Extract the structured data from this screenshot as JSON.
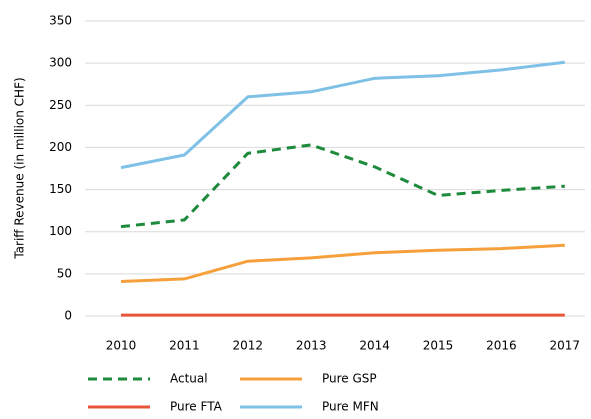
{
  "chart_data": {
    "type": "line",
    "ylabel": "Tariff Revenue (in million CHF)",
    "categories": [
      "2010",
      "2011",
      "2012",
      "2013",
      "2014",
      "2015",
      "2016",
      "2017"
    ],
    "series": [
      {
        "name": "Actual",
        "color": "#1e8a3c",
        "dashed": true,
        "values": [
          106,
          114,
          193,
          203,
          177,
          143,
          149,
          154
        ]
      },
      {
        "name": "Pure GSP",
        "color": "#f5a03a",
        "dashed": false,
        "values": [
          41,
          44,
          65,
          69,
          75,
          78,
          80,
          84
        ]
      },
      {
        "name": "Pure FTA",
        "color": "#e8543a",
        "dashed": false,
        "values": [
          1,
          1,
          1,
          1,
          1,
          1,
          1,
          1
        ]
      },
      {
        "name": "Pure MFN",
        "color": "#7ec0e6",
        "dashed": false,
        "values": [
          176,
          191,
          260,
          266,
          282,
          285,
          292,
          301
        ]
      }
    ],
    "ylim": [
      0,
      350
    ],
    "yticks": [
      0,
      50,
      100,
      150,
      200,
      250,
      300,
      350
    ],
    "grid": true,
    "legend": "bottom"
  }
}
